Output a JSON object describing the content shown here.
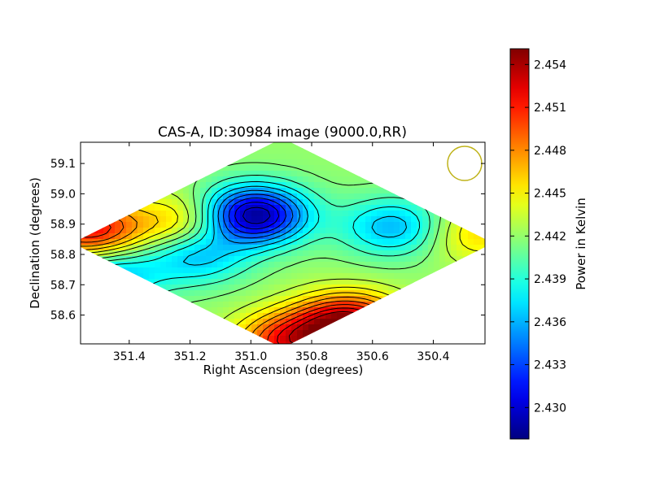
{
  "chart_data": {
    "type": "heatmap",
    "title": "CAS-A, ID:30984 image (9000.0,RR)",
    "xlabel": "Right Ascension (degrees)",
    "ylabel": "Declination (degrees)",
    "x_ticks": [
      "351.4",
      "351.2",
      "351.0",
      "350.8",
      "350.6",
      "350.4"
    ],
    "x_tick_values": [
      351.4,
      351.2,
      351.0,
      350.8,
      350.6,
      350.4
    ],
    "y_ticks": [
      "59.1",
      "59.0",
      "58.9",
      "58.8",
      "58.7",
      "58.6"
    ],
    "y_tick_values": [
      59.1,
      59.0,
      58.9,
      58.8,
      58.7,
      58.6
    ],
    "xlim": [
      351.56,
      350.23
    ],
    "ylim": [
      58.505,
      59.17
    ],
    "colorbar": {
      "label": "Power in Kelvin",
      "colormap": "jet",
      "min": 2.4278,
      "max": 2.4551,
      "ticks": [
        "2.430",
        "2.433",
        "2.436",
        "2.439",
        "2.442",
        "2.445",
        "2.448",
        "2.451",
        "2.454"
      ],
      "tick_values": [
        2.43,
        2.433,
        2.436,
        2.439,
        2.442,
        2.445,
        2.448,
        2.451,
        2.454
      ]
    },
    "coverage_region": "diamond",
    "contours": "black lines",
    "beam_marker": "circle, olive outline, top-right",
    "features": [
      {
        "kind": "minimum",
        "ra": 350.99,
        "dec": 58.93,
        "value": 2.428
      },
      {
        "kind": "maximum",
        "ra": 350.68,
        "dec": 58.57,
        "value": 2.455
      },
      {
        "kind": "maximum",
        "ra": 351.53,
        "dec": 58.88,
        "value": 2.452
      },
      {
        "kind": "maximum",
        "ra": 350.88,
        "dec": 58.51,
        "value": 2.451
      },
      {
        "kind": "local-high",
        "ra": 351.22,
        "dec": 58.9,
        "value": 2.447
      },
      {
        "kind": "local-low",
        "ra": 350.53,
        "dec": 58.89,
        "value": 2.436
      },
      {
        "kind": "local-low",
        "ra": 351.18,
        "dec": 58.8,
        "value": 2.436
      },
      {
        "kind": "local-low",
        "ra": 351.47,
        "dec": 58.73,
        "value": 2.436
      },
      {
        "kind": "local-high",
        "ra": 350.26,
        "dec": 58.87,
        "value": 2.446
      }
    ]
  }
}
